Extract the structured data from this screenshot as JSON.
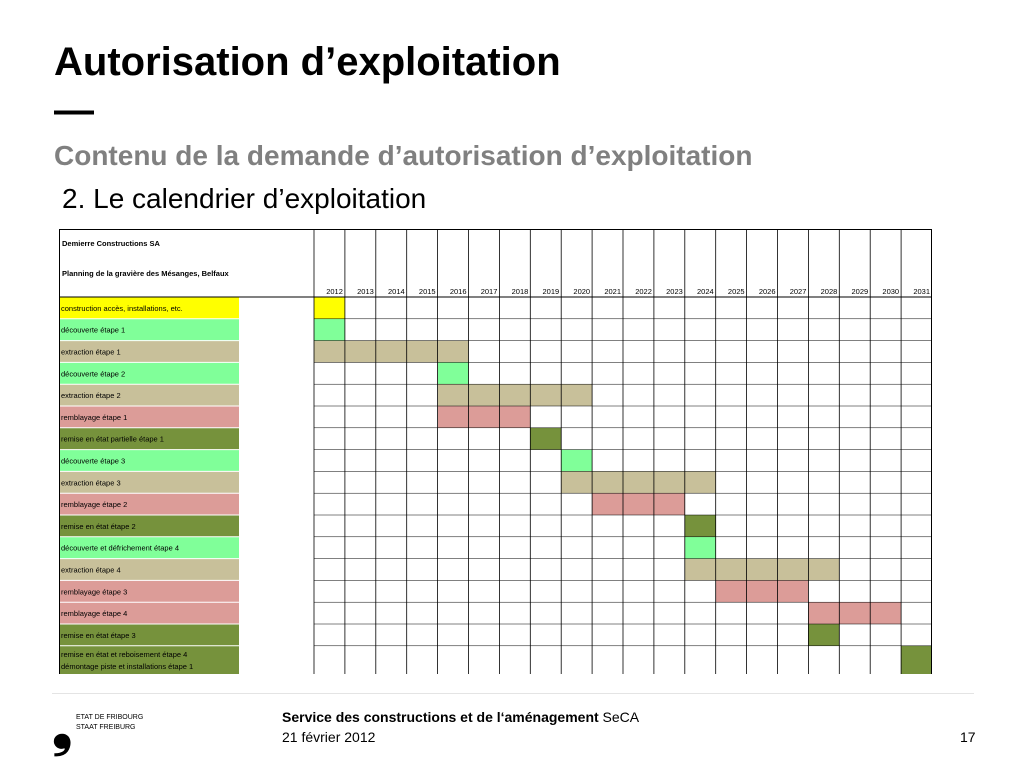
{
  "header": {
    "title": "Autorisation d’exploitation",
    "dash": "—",
    "subtitle": "Contenu de la demande d’autorisation d’exploitation",
    "section": "2. Le calendrier d’exploitation"
  },
  "planning": {
    "company": "Demierre Constructions SA",
    "plan_title": "Planning de la gravière des Mésanges, Belfaux",
    "years": [
      "2012",
      "2013",
      "2014",
      "2015",
      "2016",
      "2017",
      "2018",
      "2019",
      "2020",
      "2021",
      "2022",
      "2023",
      "2024",
      "2025",
      "2026",
      "2027",
      "2028",
      "2029",
      "2030",
      "2031"
    ],
    "colors": {
      "construction": "#ffff00",
      "decouverte": "#80ff99",
      "extraction": "#c8c09a",
      "remblayage": "#dc9c98",
      "remise": "#76923c"
    },
    "tasks": [
      {
        "label": "construction accès, installations, etc.",
        "kind": "construction",
        "cells": [
          "2012"
        ]
      },
      {
        "label": "découverte étape 1",
        "kind": "decouverte",
        "cells": [
          "2012"
        ]
      },
      {
        "label": "extraction étape 1",
        "kind": "extraction",
        "cells": [
          "2012",
          "2013",
          "2014",
          "2015",
          "2016"
        ]
      },
      {
        "label": "découverte étape 2",
        "kind": "decouverte",
        "cells": [
          "2016"
        ]
      },
      {
        "label": "extraction étape 2",
        "kind": "extraction",
        "cells": [
          "2016",
          "2017",
          "2018",
          "2019",
          "2020"
        ]
      },
      {
        "label": "remblayage étape 1",
        "kind": "remblayage",
        "cells": [
          "2016",
          "2017",
          "2018"
        ]
      },
      {
        "label": "remise en état partielle étape 1",
        "kind": "remise",
        "cells": [
          "2019"
        ]
      },
      {
        "label": "découverte étape 3",
        "kind": "decouverte",
        "cells": [
          "2020"
        ]
      },
      {
        "label": "extraction étape 3",
        "kind": "extraction",
        "cells": [
          "2020",
          "2021",
          "2022",
          "2023",
          "2024"
        ]
      },
      {
        "label": "remblayage étape 2",
        "kind": "remblayage",
        "cells": [
          "2021",
          "2022",
          "2023"
        ]
      },
      {
        "label": "remise en état étape 2",
        "kind": "remise",
        "cells": [
          "2024"
        ]
      },
      {
        "label": "découverte et défrichement étape 4",
        "kind": "decouverte",
        "cells": [
          "2024"
        ]
      },
      {
        "label": "extraction étape 4",
        "kind": "extraction",
        "cells": [
          "2024",
          "2025",
          "2026",
          "2027",
          "2028"
        ]
      },
      {
        "label": "remblayage étape 3",
        "kind": "remblayage",
        "cells": [
          "2025",
          "2026",
          "2027"
        ]
      },
      {
        "label": "remblayage étape 4",
        "kind": "remblayage",
        "cells": [
          "2028",
          "2029",
          "2030"
        ]
      },
      {
        "label": "remise en état étape 3",
        "kind": "remise",
        "cells": [
          "2028"
        ]
      },
      {
        "label": "remise en état et reboisement étape 4",
        "label2": "démontage  piste  et  installations étape 1",
        "kind": "remise",
        "cells": [
          "2031"
        ]
      }
    ]
  },
  "footer": {
    "logo_line1": "ETAT DE FRIBOURG",
    "logo_line2": "STAAT FREIBURG",
    "logo_mark": "❟",
    "service_bold": "Service des constructions et de l‘aménagement",
    "service_unit": " SeCA",
    "date": "21 février 2012",
    "page": "17"
  }
}
